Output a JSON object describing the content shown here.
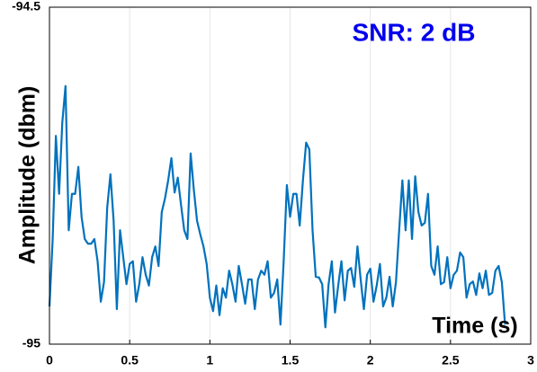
{
  "chart_data": {
    "type": "line",
    "annotation": "SNR: 2 dB",
    "xlabel": "Time (s)",
    "ylabel": "Amplitude (dbm)",
    "xlim": [
      0,
      3
    ],
    "xticks": [
      0,
      0.5,
      1,
      1.5,
      2,
      2.5,
      3
    ],
    "ylim": [
      -95,
      -94.5
    ],
    "yticks": [
      -95,
      -94.5
    ],
    "grid": "x",
    "x": [
      0,
      0.02,
      0.04,
      0.06,
      0.08,
      0.1,
      0.12,
      0.14,
      0.16,
      0.18,
      0.2,
      0.22,
      0.24,
      0.26,
      0.28,
      0.3,
      0.32,
      0.34,
      0.36,
      0.38,
      0.4,
      0.42,
      0.44,
      0.46,
      0.48,
      0.5,
      0.52,
      0.54,
      0.56,
      0.58,
      0.6,
      0.62,
      0.64,
      0.66,
      0.68,
      0.7,
      0.72,
      0.74,
      0.76,
      0.78,
      0.8,
      0.82,
      0.84,
      0.86,
      0.88,
      0.9,
      0.92,
      0.94,
      0.96,
      0.98,
      1,
      1.02,
      1.04,
      1.06,
      1.08,
      1.1,
      1.12,
      1.14,
      1.16,
      1.18,
      1.2,
      1.22,
      1.24,
      1.26,
      1.28,
      1.3,
      1.32,
      1.34,
      1.36,
      1.38,
      1.4,
      1.42,
      1.44,
      1.46,
      1.48,
      1.5,
      1.52,
      1.54,
      1.56,
      1.58,
      1.6,
      1.62,
      1.64,
      1.66,
      1.68,
      1.7,
      1.72,
      1.74,
      1.76,
      1.78,
      1.8,
      1.82,
      1.84,
      1.86,
      1.88,
      1.9,
      1.92,
      1.94,
      1.96,
      1.98,
      2,
      2.02,
      2.04,
      2.06,
      2.08,
      2.1,
      2.12,
      2.14,
      2.16,
      2.18,
      2.2,
      2.22,
      2.24,
      2.26,
      2.28,
      2.3,
      2.32,
      2.34,
      2.36,
      2.38,
      2.4,
      2.42,
      2.44,
      2.46,
      2.48,
      2.5,
      2.52,
      2.54,
      2.56,
      2.58,
      2.6,
      2.62,
      2.64,
      2.66,
      2.68,
      2.7,
      2.72,
      2.74,
      2.76,
      2.78,
      2.8,
      2.82,
      2.84
    ],
    "series": [
      {
        "color": "#0072bd",
        "values": [
          -94.944,
          -94.844,
          -94.691,
          -94.777,
          -94.671,
          -94.617,
          -94.831,
          -94.777,
          -94.777,
          -94.737,
          -94.811,
          -94.844,
          -94.851,
          -94.851,
          -94.844,
          -94.877,
          -94.937,
          -94.908,
          -94.797,
          -94.748,
          -94.817,
          -94.948,
          -94.831,
          -94.871,
          -94.911,
          -94.881,
          -94.877,
          -94.937,
          -94.911,
          -94.871,
          -94.897,
          -94.913,
          -94.871,
          -94.855,
          -94.884,
          -94.804,
          -94.784,
          -94.757,
          -94.724,
          -94.775,
          -94.753,
          -94.793,
          -94.831,
          -94.844,
          -94.717,
          -94.771,
          -94.817,
          -94.837,
          -94.855,
          -94.881,
          -94.931,
          -94.951,
          -94.913,
          -94.957,
          -94.917,
          -94.931,
          -94.891,
          -94.911,
          -94.937,
          -94.884,
          -94.911,
          -94.94,
          -94.904,
          -94.904,
          -94.948,
          -94.904,
          -94.891,
          -94.897,
          -94.877,
          -94.931,
          -94.924,
          -94.904,
          -94.971,
          -94.877,
          -94.764,
          -94.811,
          -94.777,
          -94.777,
          -94.824,
          -94.757,
          -94.701,
          -94.711,
          -94.831,
          -94.9,
          -94.901,
          -94.911,
          -94.975,
          -94.911,
          -94.877,
          -94.953,
          -94.913,
          -94.877,
          -94.935,
          -94.891,
          -94.887,
          -94.915,
          -94.855,
          -94.904,
          -94.948,
          -94.897,
          -94.888,
          -94.937,
          -94.913,
          -94.881,
          -94.944,
          -94.931,
          -94.9,
          -94.944,
          -94.908,
          -94.831,
          -94.757,
          -94.831,
          -94.757,
          -94.844,
          -94.751,
          -94.804,
          -94.824,
          -94.82,
          -94.777,
          -94.884,
          -94.897,
          -94.855,
          -94.911,
          -94.908,
          -94.871,
          -94.917,
          -94.897,
          -94.891,
          -94.864,
          -94.871,
          -94.931,
          -94.911,
          -94.907,
          -94.927,
          -94.895,
          -94.917,
          -94.891,
          -94.927,
          -94.924,
          -94.891,
          -94.884,
          -94.908,
          -94.971
        ]
      }
    ]
  }
}
